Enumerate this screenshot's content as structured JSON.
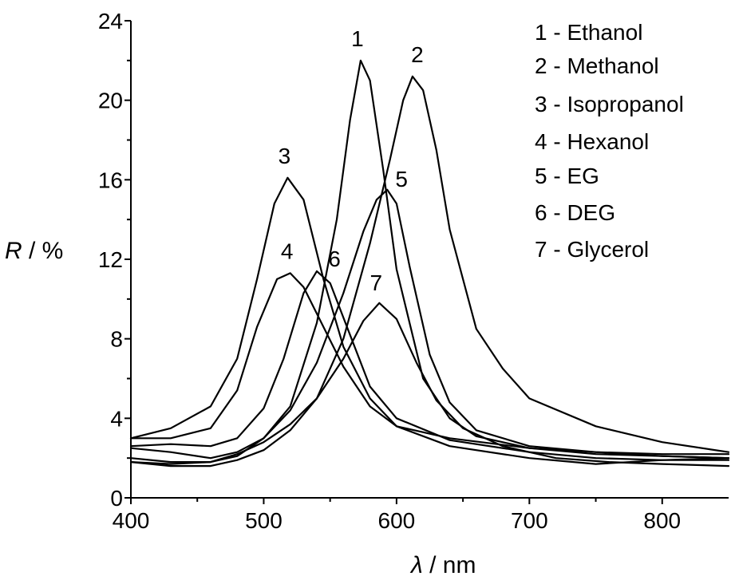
{
  "chart_data": {
    "type": "line",
    "xlabel_symbol": "λ",
    "xlabel_unit": " / nm",
    "ylabel_symbol": "R",
    "ylabel_unit": " / %",
    "xlim": [
      400,
      850
    ],
    "ylim": [
      0,
      24
    ],
    "x_ticks": [
      400,
      500,
      600,
      700,
      800
    ],
    "y_ticks": [
      0,
      4,
      8,
      12,
      16,
      20,
      24
    ],
    "grid": false,
    "legend_position": "top-right",
    "legend": [
      "1 - Ethanol",
      "2 - Methanol",
      "3 - Isopropanol",
      "4 - Hexanol",
      "5 - EG",
      "6 - DEG",
      "7 - Glycerol"
    ],
    "series": [
      {
        "name": "Ethanol",
        "label": "1",
        "x": [
          400,
          430,
          460,
          480,
          500,
          520,
          540,
          555,
          565,
          573,
          580,
          590,
          600,
          620,
          640,
          660,
          700,
          750,
          800,
          850
        ],
        "y": [
          2.5,
          2.3,
          2.0,
          2.3,
          3.0,
          4.6,
          8.8,
          14.0,
          19.0,
          22.0,
          21.0,
          16.5,
          11.5,
          6.0,
          4.0,
          3.1,
          2.5,
          2.2,
          2.1,
          2.0
        ]
      },
      {
        "name": "Methanol",
        "label": "2",
        "x": [
          400,
          430,
          460,
          480,
          500,
          520,
          540,
          560,
          580,
          595,
          605,
          612,
          620,
          630,
          640,
          660,
          680,
          700,
          750,
          800,
          850
        ],
        "y": [
          1.8,
          1.6,
          1.6,
          1.9,
          2.4,
          3.4,
          5.0,
          8.0,
          12.8,
          17.0,
          20.0,
          21.2,
          20.5,
          17.5,
          13.5,
          8.5,
          6.5,
          5.0,
          3.6,
          2.8,
          2.3
        ]
      },
      {
        "name": "Isopropanol",
        "label": "3",
        "x": [
          400,
          430,
          460,
          480,
          495,
          508,
          518,
          530,
          545,
          560,
          580,
          600,
          640,
          700,
          750,
          800,
          850
        ],
        "y": [
          3.0,
          3.5,
          4.6,
          7.0,
          11.0,
          14.8,
          16.1,
          15.0,
          11.0,
          7.6,
          5.0,
          3.6,
          2.6,
          2.0,
          1.7,
          1.9,
          2.0
        ]
      },
      {
        "name": "Hexanol",
        "label": "4",
        "x": [
          400,
          430,
          460,
          480,
          495,
          510,
          520,
          530,
          545,
          560,
          580,
          600,
          640,
          700,
          750,
          800,
          850
        ],
        "y": [
          3.0,
          3.0,
          3.5,
          5.4,
          8.6,
          11.0,
          11.3,
          10.6,
          8.6,
          6.6,
          4.6,
          3.6,
          3.0,
          2.5,
          2.3,
          2.2,
          2.2
        ]
      },
      {
        "name": "EG",
        "label": "5",
        "x": [
          400,
          430,
          460,
          480,
          500,
          520,
          540,
          560,
          575,
          585,
          593,
          600,
          610,
          625,
          640,
          660,
          700,
          750,
          800,
          850
        ],
        "y": [
          1.8,
          1.7,
          1.8,
          2.1,
          3.0,
          4.4,
          6.8,
          10.3,
          13.4,
          15.0,
          15.5,
          14.8,
          11.6,
          7.2,
          4.8,
          3.4,
          2.6,
          2.3,
          2.1,
          2.0
        ]
      },
      {
        "name": "DEG",
        "label": "6",
        "x": [
          400,
          430,
          460,
          480,
          500,
          515,
          530,
          540,
          550,
          565,
          580,
          600,
          640,
          700,
          750,
          800,
          850
        ],
        "y": [
          2.6,
          2.7,
          2.6,
          3.0,
          4.5,
          7.0,
          10.3,
          11.4,
          10.8,
          8.2,
          5.6,
          4.0,
          2.9,
          2.3,
          2.0,
          1.9,
          1.9
        ]
      },
      {
        "name": "Glycerol",
        "label": "7",
        "x": [
          400,
          430,
          460,
          480,
          500,
          520,
          540,
          560,
          575,
          587,
          600,
          615,
          630,
          650,
          680,
          720,
          760,
          800,
          850
        ],
        "y": [
          2.0,
          1.8,
          1.8,
          2.2,
          2.8,
          3.7,
          5.0,
          7.0,
          8.9,
          9.8,
          9.0,
          6.8,
          4.9,
          3.5,
          2.6,
          2.0,
          1.8,
          1.7,
          1.6
        ]
      }
    ]
  }
}
